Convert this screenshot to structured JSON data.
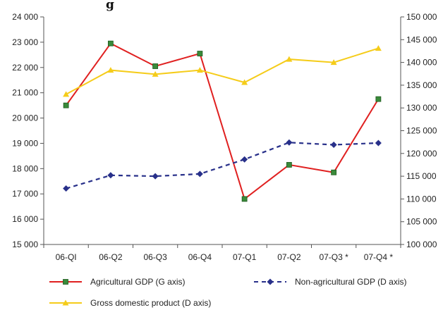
{
  "title_fragment": "g",
  "chart_data": {
    "type": "line",
    "categories": [
      "06-QI",
      "06-Q2",
      "06-Q3",
      "06-Q4",
      "07-Q1",
      "07-Q2",
      "07-Q3 *",
      "07-Q4 *"
    ],
    "left_axis": {
      "ylim": [
        15000,
        24000
      ],
      "ticks": [
        "15 000",
        "16 000",
        "17 000",
        "18 000",
        "19 000",
        "20 000",
        "21 000",
        "22 000",
        "23 000",
        "24 000"
      ]
    },
    "right_axis": {
      "ylim": [
        100000,
        150000
      ],
      "ticks": [
        "100 000",
        "105 000",
        "110 000",
        "115 000",
        "120 000",
        "125 000",
        "130 000",
        "135 000",
        "140 000",
        "145 000",
        "150 000"
      ]
    },
    "series": [
      {
        "name": "Agricultural GDP (G axis)",
        "axis": "left",
        "color": "#e02020",
        "marker": "square",
        "marker_color": "#3a8a3a",
        "values": [
          20500,
          22950,
          22050,
          22550,
          16800,
          18150,
          17850,
          20750
        ]
      },
      {
        "name": "Non-agricultural GDP (D axis)",
        "axis": "right",
        "color": "#28308a",
        "marker": "diamond",
        "dashed": true,
        "values": [
          112300,
          115200,
          115000,
          115500,
          118700,
          122400,
          121900,
          122300
        ]
      },
      {
        "name": "Gross domestic product (D axis)",
        "axis": "right",
        "color": "#f5cc1a",
        "marker": "triangle",
        "values": [
          133000,
          138300,
          137400,
          138300,
          135600,
          140700,
          140000,
          143100
        ]
      }
    ],
    "grid": false,
    "legend_position": "bottom"
  }
}
